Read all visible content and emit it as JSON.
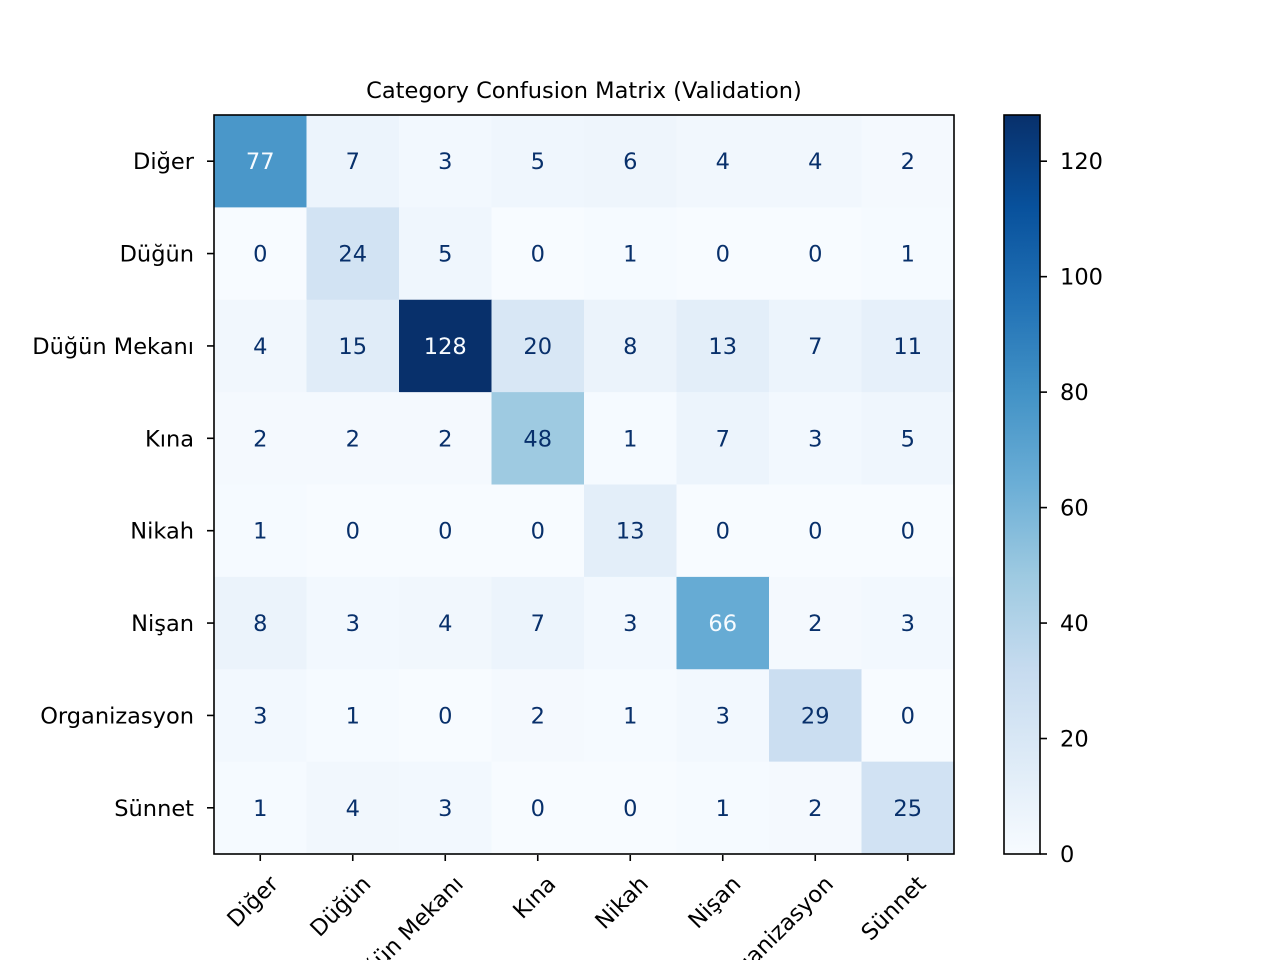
{
  "chart_data": {
    "type": "heatmap",
    "title": "Category Confusion Matrix (Validation)",
    "xlabel": "",
    "ylabel": "",
    "row_labels": [
      "Diğer",
      "Düğün",
      "Düğün Mekanı",
      "Kına",
      "Nikah",
      "Nişan",
      "Organizasyon",
      "Sünnet"
    ],
    "col_labels": [
      "Diğer",
      "Düğün",
      "Düğün Mekanı",
      "Kına",
      "Nikah",
      "Nişan",
      "Organizasyon",
      "Sünnet"
    ],
    "values": [
      [
        77,
        7,
        3,
        5,
        6,
        4,
        4,
        2
      ],
      [
        0,
        24,
        5,
        0,
        1,
        0,
        0,
        1
      ],
      [
        4,
        15,
        128,
        20,
        8,
        13,
        7,
        11
      ],
      [
        2,
        2,
        2,
        48,
        1,
        7,
        3,
        5
      ],
      [
        1,
        0,
        0,
        0,
        13,
        0,
        0,
        0
      ],
      [
        8,
        3,
        4,
        7,
        3,
        66,
        2,
        3
      ],
      [
        3,
        1,
        0,
        2,
        1,
        3,
        29,
        0
      ],
      [
        1,
        4,
        3,
        0,
        0,
        1,
        2,
        25
      ]
    ],
    "colormap": "Blues",
    "colorbar": {
      "range": [
        0,
        128
      ],
      "ticks": [
        0,
        20,
        40,
        60,
        80,
        100,
        120
      ],
      "placement": "right"
    },
    "grid": false
  }
}
